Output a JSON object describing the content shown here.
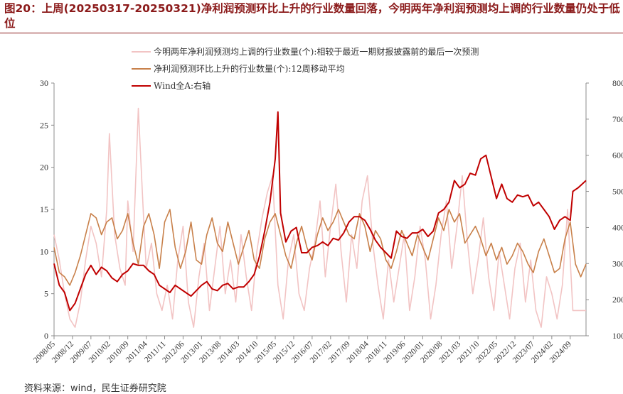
{
  "header": {
    "title": "图20：上周(20250317-20250321)净利润预测环比上升的行业数量回落，今明两年净利润预测均上调的行业数量仍处于低位"
  },
  "footer": {
    "source": "资料来源：wind，民生证券研究院"
  },
  "chart_data": {
    "type": "line",
    "title": "图20：上周(20250317-20250321)净利润预测环比上升的行业数量回落，今明两年净利润预测均上调的行业数量仍处于低位",
    "x_ticks": [
      "2008/05",
      "2008/12",
      "2009/07",
      "2010/02",
      "2010/09",
      "2011/04",
      "2011/11",
      "2012/06",
      "2013/01",
      "2013/08",
      "2014/03",
      "2014/10",
      "2015/05",
      "2015/12",
      "2016/07",
      "2017/02",
      "2017/09",
      "2018/04",
      "2018/11",
      "2019/06",
      "2020/01",
      "2020/08",
      "2021/03",
      "2021/10",
      "2022/05",
      "2022/12",
      "2023/07",
      "2024/02",
      "2024/09"
    ],
    "x_range": [
      "2008/05",
      "2025/03"
    ],
    "y_left": {
      "min": 0,
      "max": 30,
      "ticks": [
        0,
        5,
        10,
        15,
        20,
        25,
        30
      ]
    },
    "y_right": {
      "min": 1000,
      "max": 8000,
      "ticks": [
        1000,
        2000,
        3000,
        4000,
        5000,
        6000,
        7000,
        8000
      ]
    },
    "legend_placement": "top-left",
    "grid": false,
    "colors": {
      "pink": "#f2c4c4",
      "brown": "#c8804a",
      "red": "#c00000",
      "axis": "#8c8c8c"
    },
    "series": [
      {
        "name": "今明两年净利润预测均上调的行业数量(个):相较于最近一期财报披露前的最后一次预测",
        "axis": "left",
        "color": "#f2c4c4",
        "x": [
          "2008/05",
          "2008/07",
          "2008/09",
          "2008/11",
          "2009/01",
          "2009/03",
          "2009/05",
          "2009/07",
          "2009/09",
          "2009/11",
          "2010/01",
          "2010/02",
          "2010/04",
          "2010/06",
          "2010/08",
          "2010/09",
          "2010/11",
          "2011/01",
          "2011/03",
          "2011/04",
          "2011/06",
          "2011/08",
          "2011/10",
          "2011/12",
          "2012/02",
          "2012/04",
          "2012/06",
          "2012/08",
          "2012/10",
          "2012/12",
          "2013/02",
          "2013/04",
          "2013/06",
          "2013/08",
          "2013/10",
          "2013/12",
          "2014/02",
          "2014/04",
          "2014/06",
          "2014/08",
          "2014/10",
          "2014/12",
          "2015/02",
          "2015/04",
          "2015/06",
          "2015/08",
          "2015/10",
          "2015/12",
          "2016/02",
          "2016/04",
          "2016/06",
          "2016/08",
          "2016/10",
          "2016/12",
          "2017/02",
          "2017/04",
          "2017/06",
          "2017/08",
          "2017/10",
          "2017/12",
          "2018/02",
          "2018/04",
          "2018/06",
          "2018/08",
          "2018/10",
          "2018/12",
          "2019/02",
          "2019/04",
          "2019/06",
          "2019/08",
          "2019/10",
          "2019/12",
          "2020/02",
          "2020/04",
          "2020/06",
          "2020/08",
          "2020/10",
          "2020/12",
          "2021/02",
          "2021/04",
          "2021/06",
          "2021/08",
          "2021/10",
          "2021/12",
          "2022/02",
          "2022/04",
          "2022/06",
          "2022/08",
          "2022/10",
          "2022/12",
          "2023/02",
          "2023/04",
          "2023/06",
          "2023/08",
          "2023/10",
          "2023/12",
          "2024/02",
          "2024/04",
          "2024/06",
          "2024/08",
          "2024/10",
          "2024/12",
          "2025/03"
        ],
        "values": [
          12,
          9,
          5,
          2,
          1,
          4,
          9,
          13,
          11,
          7,
          15,
          24,
          12,
          8,
          6,
          16,
          10,
          27,
          14,
          8,
          11,
          5,
          3,
          6,
          2,
          9,
          13,
          4,
          1,
          7,
          11,
          3,
          8,
          13,
          5,
          9,
          4,
          12,
          7,
          3,
          10,
          14,
          17,
          19,
          6,
          2,
          9,
          12,
          5,
          3,
          8,
          11,
          16,
          7,
          13,
          18,
          10,
          4,
          12,
          8,
          16,
          19,
          11,
          6,
          2,
          9,
          4,
          8,
          12,
          3,
          7,
          13,
          9,
          2,
          6,
          12,
          16,
          8,
          13,
          19,
          11,
          5,
          9,
          14,
          7,
          3,
          10,
          6,
          2,
          8,
          11,
          4,
          9,
          3,
          1,
          7,
          5,
          2,
          6,
          15,
          3,
          3,
          3
        ]
      },
      {
        "name": "净利润预测环比上升的行业数量(个):12周移动平均",
        "axis": "left",
        "color": "#c8804a",
        "x": [
          "2008/05",
          "2008/07",
          "2008/09",
          "2008/11",
          "2009/01",
          "2009/03",
          "2009/05",
          "2009/07",
          "2009/09",
          "2009/11",
          "2010/01",
          "2010/03",
          "2010/05",
          "2010/07",
          "2010/09",
          "2010/11",
          "2011/01",
          "2011/03",
          "2011/05",
          "2011/07",
          "2011/09",
          "2011/11",
          "2012/01",
          "2012/03",
          "2012/05",
          "2012/07",
          "2012/09",
          "2012/11",
          "2013/01",
          "2013/03",
          "2013/05",
          "2013/07",
          "2013/09",
          "2013/11",
          "2014/01",
          "2014/03",
          "2014/05",
          "2014/07",
          "2014/09",
          "2014/11",
          "2015/01",
          "2015/03",
          "2015/05",
          "2015/07",
          "2015/09",
          "2015/11",
          "2016/01",
          "2016/03",
          "2016/05",
          "2016/07",
          "2016/09",
          "2016/11",
          "2017/01",
          "2017/03",
          "2017/05",
          "2017/07",
          "2017/09",
          "2017/11",
          "2018/01",
          "2018/03",
          "2018/05",
          "2018/07",
          "2018/09",
          "2018/11",
          "2019/01",
          "2019/03",
          "2019/05",
          "2019/07",
          "2019/09",
          "2019/11",
          "2020/01",
          "2020/03",
          "2020/05",
          "2020/07",
          "2020/09",
          "2020/11",
          "2021/01",
          "2021/03",
          "2021/05",
          "2021/07",
          "2021/09",
          "2021/11",
          "2022/01",
          "2022/03",
          "2022/05",
          "2022/07",
          "2022/09",
          "2022/11",
          "2023/01",
          "2023/03",
          "2023/05",
          "2023/07",
          "2023/09",
          "2023/11",
          "2024/01",
          "2024/03",
          "2024/05",
          "2024/07",
          "2024/09",
          "2024/11",
          "2025/01",
          "2025/03"
        ],
        "values": [
          10.5,
          7.5,
          7.0,
          6.0,
          7.5,
          9.5,
          12.0,
          14.5,
          14.0,
          12.0,
          13.5,
          14.0,
          11.5,
          12.5,
          14.5,
          11.0,
          8.5,
          13.0,
          14.5,
          12.0,
          8.0,
          13.5,
          15.0,
          10.5,
          8.0,
          10.0,
          13.5,
          9.0,
          8.5,
          12.0,
          14.0,
          11.0,
          10.0,
          13.5,
          11.0,
          8.5,
          10.5,
          12.5,
          9.0,
          8.0,
          11.5,
          13.5,
          14.5,
          12.0,
          9.5,
          8.0,
          11.0,
          13.0,
          10.5,
          9.0,
          12.0,
          14.0,
          12.5,
          13.5,
          15.0,
          13.5,
          12.0,
          11.5,
          14.5,
          13.0,
          10.0,
          12.5,
          11.5,
          9.0,
          8.0,
          10.0,
          12.5,
          11.0,
          9.5,
          12.0,
          10.5,
          9.0,
          11.5,
          14.0,
          12.5,
          15.0,
          13.5,
          14.5,
          11.0,
          12.0,
          13.0,
          11.5,
          9.5,
          11.0,
          9.0,
          10.5,
          8.5,
          9.5,
          11.0,
          10.0,
          8.5,
          7.5,
          10.0,
          11.5,
          9.5,
          7.5,
          8.0,
          11.5,
          13.5,
          8.5,
          7.0,
          8.5
        ]
      },
      {
        "name": "Wind全A:右轴",
        "axis": "right",
        "color": "#c00000",
        "x": [
          "2008/05",
          "2008/07",
          "2008/09",
          "2008/11",
          "2009/01",
          "2009/03",
          "2009/05",
          "2009/07",
          "2009/09",
          "2009/11",
          "2010/01",
          "2010/03",
          "2010/05",
          "2010/07",
          "2010/09",
          "2010/11",
          "2011/01",
          "2011/03",
          "2011/05",
          "2011/07",
          "2011/09",
          "2011/11",
          "2012/01",
          "2012/03",
          "2012/05",
          "2012/07",
          "2012/09",
          "2012/11",
          "2013/01",
          "2013/03",
          "2013/05",
          "2013/07",
          "2013/09",
          "2013/11",
          "2014/01",
          "2014/03",
          "2014/05",
          "2014/07",
          "2014/09",
          "2014/11",
          "2015/01",
          "2015/03",
          "2015/05",
          "2015/06",
          "2015/07",
          "2015/09",
          "2015/11",
          "2016/01",
          "2016/03",
          "2016/05",
          "2016/07",
          "2016/09",
          "2016/11",
          "2017/01",
          "2017/03",
          "2017/05",
          "2017/07",
          "2017/09",
          "2017/11",
          "2018/01",
          "2018/03",
          "2018/05",
          "2018/07",
          "2018/09",
          "2018/11",
          "2019/01",
          "2019/03",
          "2019/05",
          "2019/07",
          "2019/09",
          "2019/11",
          "2020/01",
          "2020/03",
          "2020/05",
          "2020/07",
          "2020/09",
          "2020/11",
          "2021/01",
          "2021/03",
          "2021/05",
          "2021/07",
          "2021/09",
          "2021/11",
          "2022/01",
          "2022/03",
          "2022/05",
          "2022/07",
          "2022/09",
          "2022/11",
          "2023/01",
          "2023/03",
          "2023/05",
          "2023/07",
          "2023/09",
          "2023/11",
          "2024/01",
          "2024/03",
          "2024/05",
          "2024/07",
          "2024/09",
          "2024/10",
          "2024/12",
          "2025/03"
        ],
        "values": [
          3000,
          2400,
          2200,
          1700,
          1900,
          2300,
          2700,
          2950,
          2700,
          2900,
          2800,
          2600,
          2500,
          2700,
          2800,
          3000,
          2950,
          2950,
          2800,
          2700,
          2400,
          2300,
          2200,
          2400,
          2300,
          2200,
          2100,
          2250,
          2400,
          2500,
          2300,
          2250,
          2400,
          2450,
          2300,
          2350,
          2350,
          2500,
          2700,
          3200,
          3900,
          4700,
          5900,
          7200,
          4400,
          3600,
          3900,
          4000,
          3300,
          3300,
          3450,
          3500,
          3600,
          3500,
          3700,
          3650,
          3850,
          4150,
          4300,
          4300,
          4200,
          3950,
          3650,
          3450,
          3300,
          3150,
          3900,
          3750,
          3700,
          3850,
          3850,
          3950,
          3750,
          3900,
          4400,
          4500,
          4700,
          5300,
          5100,
          5200,
          5500,
          5450,
          5900,
          6000,
          5400,
          4800,
          5200,
          4800,
          4700,
          4900,
          4850,
          4900,
          4600,
          4700,
          4500,
          4300,
          3950,
          4200,
          4300,
          4200,
          5000,
          5100,
          5300
        ]
      }
    ]
  }
}
